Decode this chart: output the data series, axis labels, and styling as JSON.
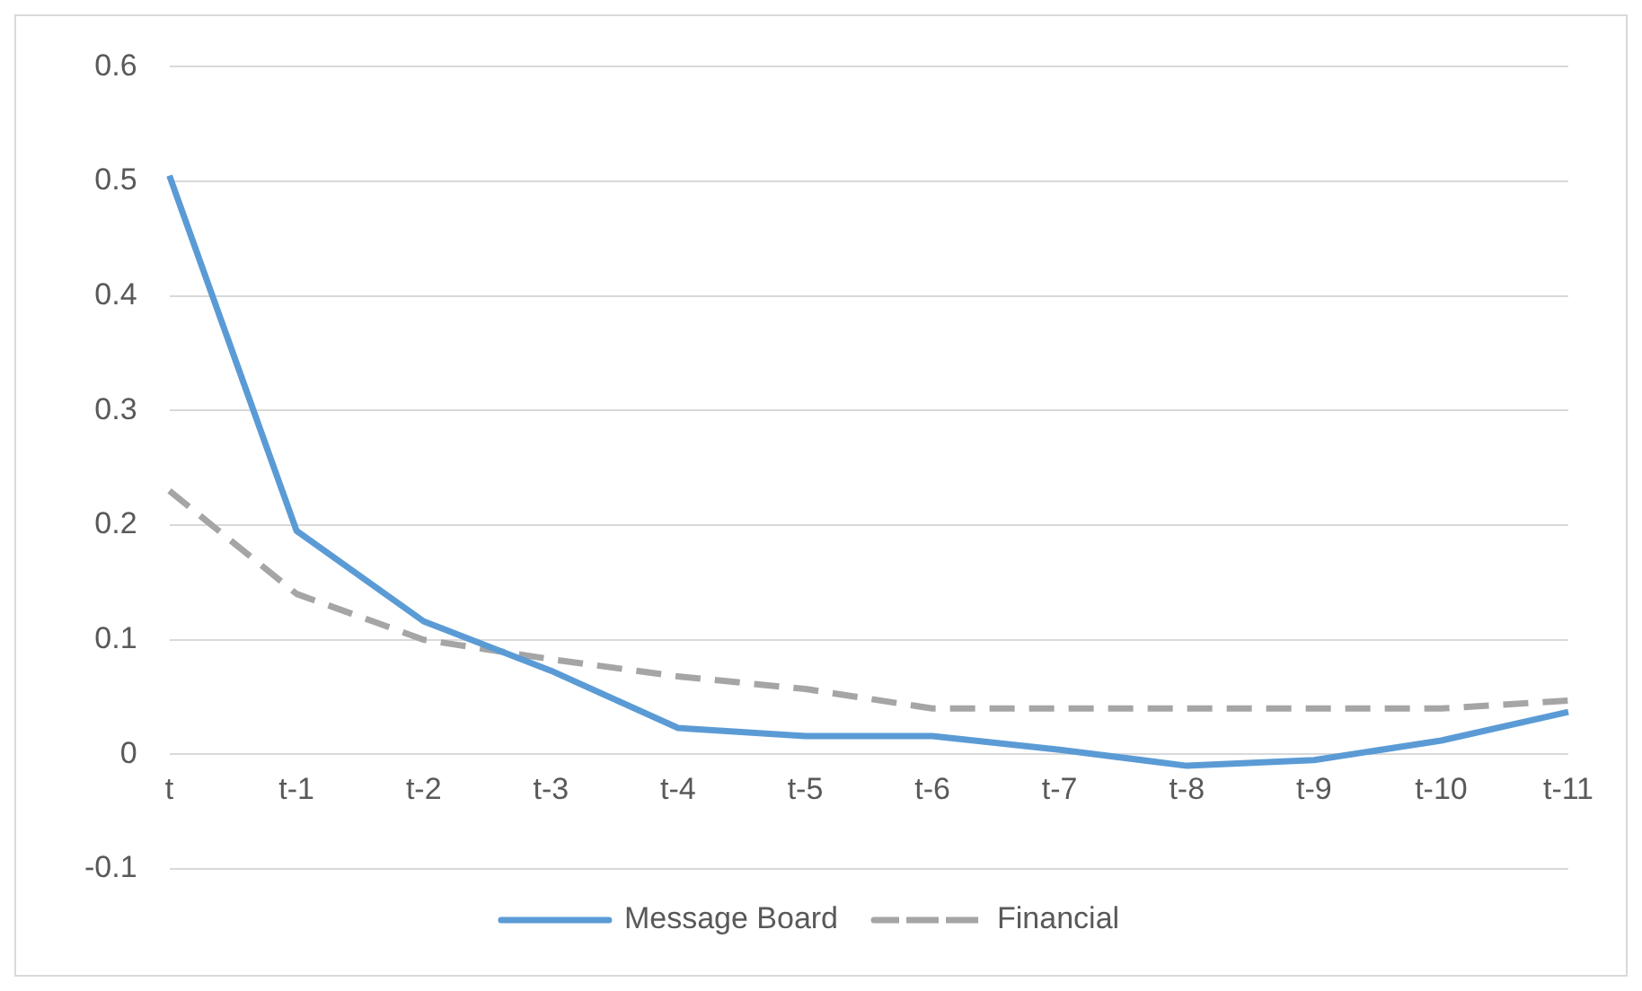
{
  "chart_data": {
    "type": "line",
    "categories": [
      "t",
      "t-1",
      "t-2",
      "t-3",
      "t-4",
      "t-5",
      "t-6",
      "t-7",
      "t-8",
      "t-9",
      "t-10",
      "t-11"
    ],
    "series": [
      {
        "name": "Message Board",
        "color": "#5b9bd5",
        "line_style": "solid",
        "values": [
          0.505,
          0.195,
          0.116,
          0.073,
          0.023,
          0.016,
          0.016,
          0.004,
          -0.01,
          -0.005,
          0.012,
          0.037
        ]
      },
      {
        "name": "Financial",
        "color": "#a5a5a5",
        "line_style": "dashed",
        "values": [
          0.23,
          0.14,
          0.1,
          0.083,
          0.068,
          0.057,
          0.04,
          0.04,
          0.04,
          0.04,
          0.04,
          0.047
        ]
      }
    ],
    "ylim": [
      -0.1,
      0.6
    ],
    "yticks": [
      -0.1,
      0,
      0.1,
      0.2,
      0.3,
      0.4,
      0.5,
      0.6
    ],
    "grid": "y",
    "legend": "bottom",
    "marker": "none"
  }
}
